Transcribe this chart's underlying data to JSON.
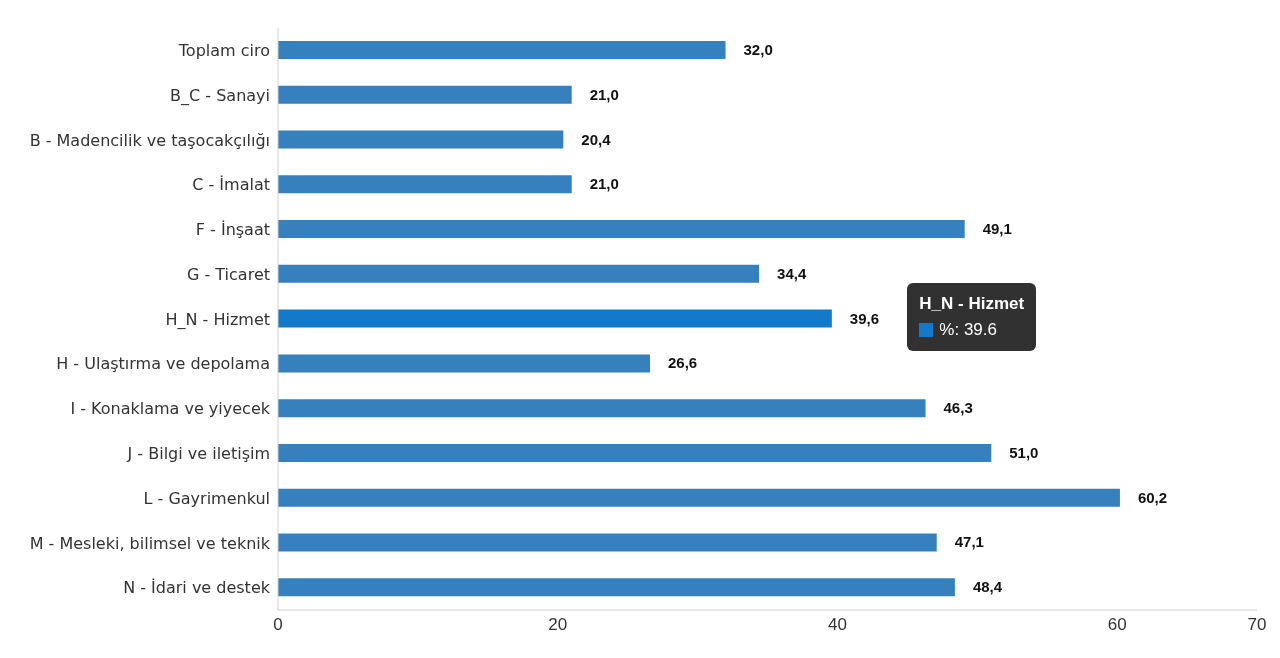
{
  "chart_data": {
    "type": "bar",
    "orientation": "horizontal",
    "categories": [
      "Toplam ciro",
      "B_C - Sanayi",
      "B - Madencilik ve taşocakçılığı",
      "C - İmalat",
      "F - İnşaat",
      "G - Ticaret",
      "H_N - Hizmet",
      "H - Ulaştırma ve depolama",
      "I - Konaklama ve yiyecek",
      "J - Bilgi ve iletişim",
      "L - Gayrimenkul",
      "M - Mesleki, bilimsel ve teknik",
      "N - İdari ve destek"
    ],
    "values": [
      32.0,
      21.0,
      20.4,
      21.0,
      49.1,
      34.4,
      39.6,
      26.6,
      46.3,
      51.0,
      60.2,
      47.1,
      48.4
    ],
    "colors": [
      "#3680bd",
      "#3680bd",
      "#3680bd",
      "#3680bd",
      "#3680bd",
      "#3680bd",
      "#1479c9",
      "#3680bd",
      "#3680bd",
      "#3680bd",
      "#3680bd",
      "#3680bd",
      "#3680bd"
    ],
    "value_labels": [
      "32,0",
      "21,0",
      "20,4",
      "21,0",
      "49,1",
      "34,4",
      "39,6",
      "26,6",
      "46,3",
      "51,0",
      "60,2",
      "47,1",
      "48,4"
    ],
    "xlim": [
      0,
      70
    ],
    "xticks": [
      0,
      20,
      40,
      60,
      70
    ],
    "annotations": [
      "H_N - Hizmet",
      "%: 39.6"
    ]
  }
}
